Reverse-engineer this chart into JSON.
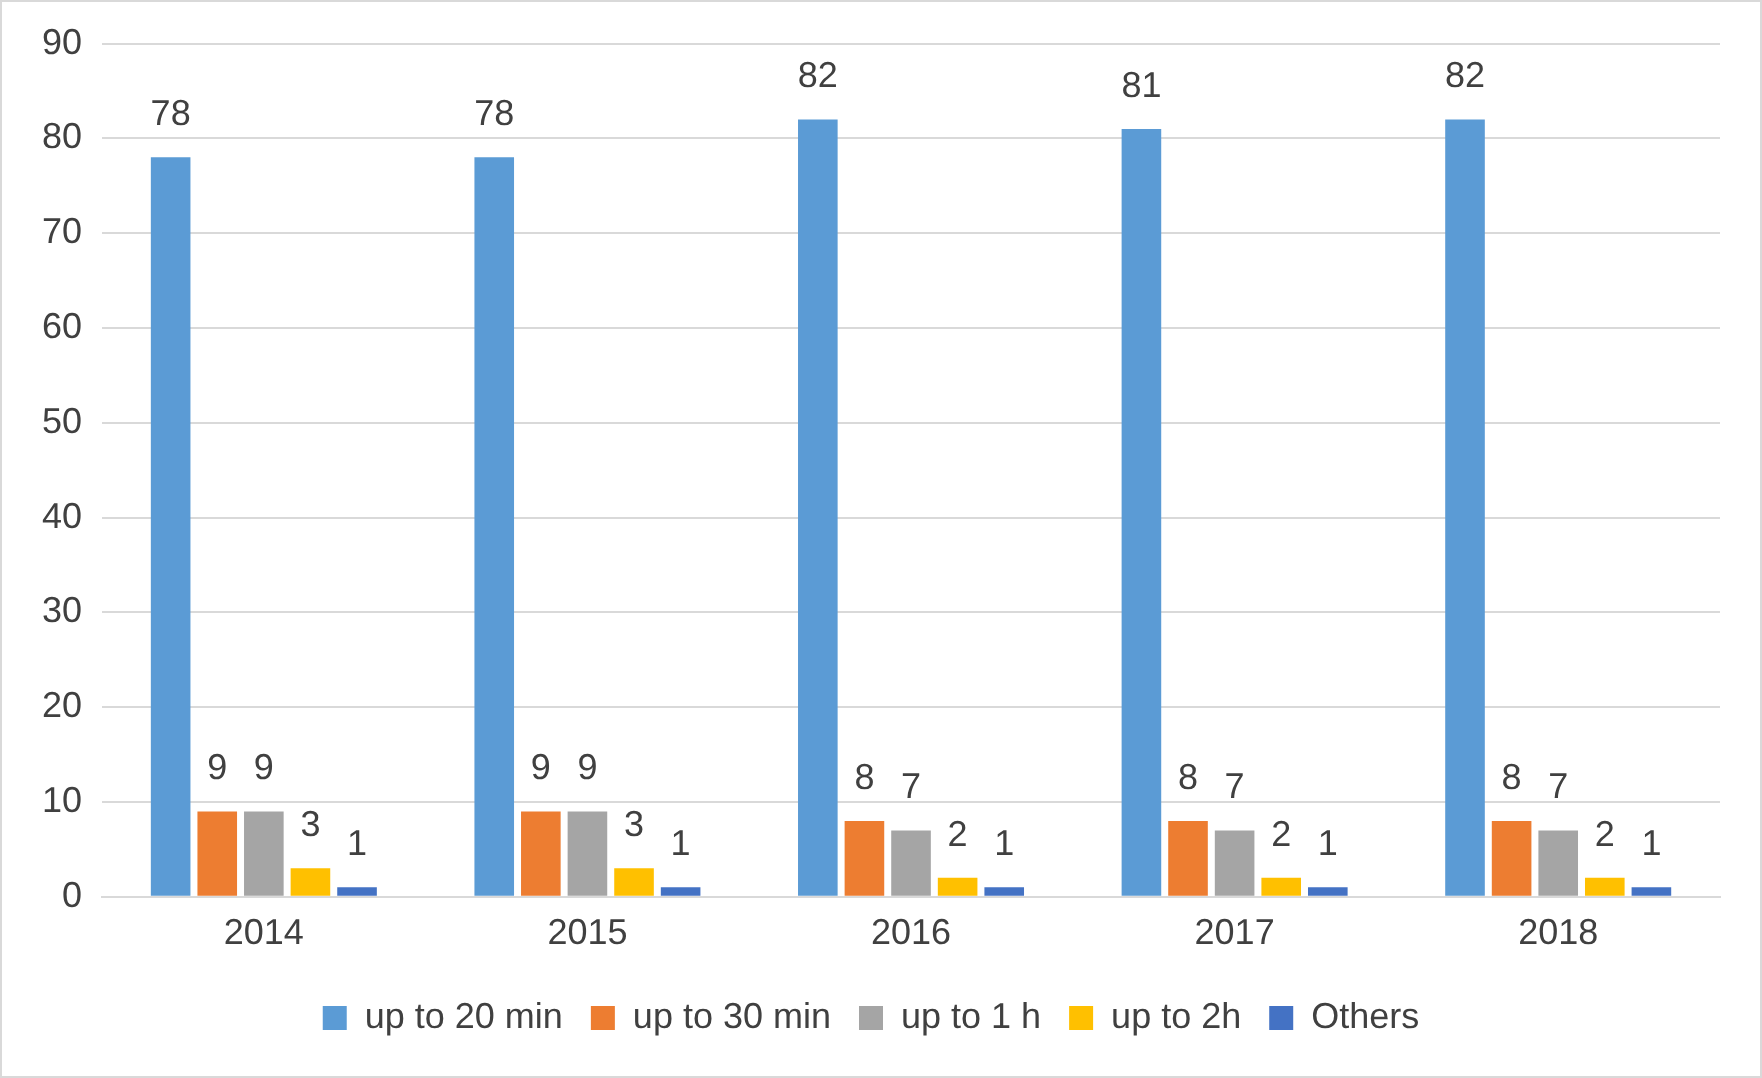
{
  "chart_data": {
    "type": "bar",
    "categories": [
      "2014",
      "2015",
      "2016",
      "2017",
      "2018"
    ],
    "series": [
      {
        "name": "up to 20 min",
        "color": "#5b9bd5",
        "values": [
          78,
          78,
          82,
          81,
          82
        ]
      },
      {
        "name": "up to 30 min",
        "color": "#ed7d31",
        "values": [
          9,
          9,
          8,
          8,
          8
        ]
      },
      {
        "name": "up to 1 h",
        "color": "#a5a5a5",
        "values": [
          9,
          9,
          7,
          7,
          7
        ]
      },
      {
        "name": "up to 2h",
        "color": "#ffc000",
        "values": [
          3,
          3,
          2,
          2,
          2
        ]
      },
      {
        "name": "Others",
        "color": "#4472c4",
        "values": [
          1,
          1,
          1,
          1,
          1
        ]
      }
    ],
    "ylim": [
      0,
      90
    ],
    "yticks": [
      0,
      10,
      20,
      30,
      40,
      50,
      60,
      70,
      80,
      90
    ],
    "grid": "y",
    "legend": "bottom",
    "data_labels": true
  }
}
